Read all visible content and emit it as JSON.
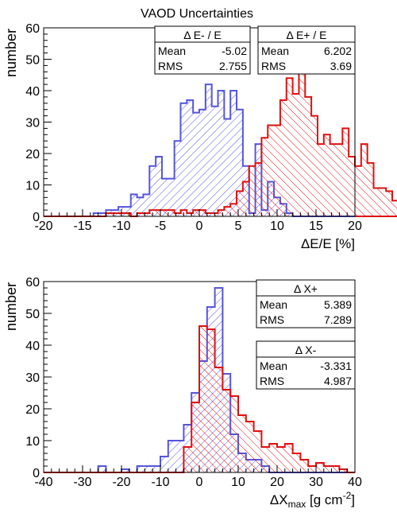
{
  "chart_data": [
    {
      "type": "histogram",
      "title": "VAOD Uncertainties",
      "xlabel_prefix": "ΔE/E [%]",
      "ylabel": "number",
      "xlim": [
        -20,
        20
      ],
      "ylim": [
        0,
        60
      ],
      "xticks": [
        "-20",
        "-15",
        "-10",
        "-5",
        "0",
        "5",
        "10",
        "15",
        "20"
      ],
      "yticks": [
        "0",
        "10",
        "20",
        "30",
        "40",
        "50",
        "60"
      ],
      "bin_width": 0.8,
      "series": [
        {
          "name": "Δ E- / E",
          "color": "#5555dd",
          "hatch": "backslash",
          "x_start": -14.4,
          "values": [
            0,
            1,
            1,
            2,
            2,
            3,
            3,
            7,
            6,
            7,
            16,
            19,
            12,
            12,
            24,
            36,
            37,
            33,
            34,
            42,
            35,
            40,
            31,
            40,
            34,
            16,
            1,
            23,
            2,
            11,
            6,
            4,
            1,
            0
          ]
        },
        {
          "name": "Δ E+ / E",
          "color": "#e01010",
          "hatch": "slash",
          "x_start": -12.0,
          "values": [
            1,
            1,
            1,
            1,
            0,
            1,
            1,
            2,
            2,
            2,
            2,
            1,
            2,
            1,
            2,
            2,
            1,
            1,
            2,
            3,
            4,
            8,
            11,
            16,
            17,
            25,
            29,
            29,
            37,
            44,
            39,
            48,
            38,
            32,
            23,
            26,
            23,
            23,
            28,
            19,
            16,
            23,
            17,
            9,
            9,
            8,
            5,
            5,
            6,
            3,
            4,
            4,
            5,
            2,
            1,
            1,
            1,
            0
          ]
        }
      ],
      "stats_boxes": [
        {
          "title": "Δ E- / E",
          "mean_label": "Mean",
          "mean": "-5.02",
          "rms_label": "RMS",
          "rms": "2.755"
        },
        {
          "title": "Δ E+ / E",
          "mean_label": "Mean",
          "mean": "6.202",
          "rms_label": "RMS",
          "rms": "3.69"
        }
      ]
    },
    {
      "type": "histogram",
      "title": "",
      "xlabel": "ΔX",
      "xlabel_sub": "max",
      "xlabel_unit": " [g cm",
      "xlabel_sup": "-2",
      "xlabel_end": "]",
      "ylabel": "number",
      "xlim": [
        -40,
        40
      ],
      "ylim": [
        0,
        60
      ],
      "xticks": [
        "-40",
        "-30",
        "-20",
        "-10",
        "0",
        "10",
        "20",
        "30",
        "40"
      ],
      "yticks": [
        "0",
        "10",
        "20",
        "30",
        "40",
        "50",
        "60"
      ],
      "bin_width": 2,
      "series": [
        {
          "name": "Δ X-",
          "color": "#5555dd",
          "hatch": "backslash",
          "x_start": -26,
          "values": [
            2,
            0,
            0,
            1,
            0,
            2,
            2,
            2,
            5,
            10,
            10,
            15,
            25,
            35,
            52,
            58,
            31,
            12,
            6,
            4,
            4,
            2,
            0
          ]
        },
        {
          "name": "Δ X+",
          "color": "#e01010",
          "hatch": "slash",
          "x_start": -4,
          "values": [
            8,
            22,
            46,
            45,
            33,
            26,
            24,
            18,
            16,
            13,
            8,
            9,
            8,
            9,
            6,
            4,
            2,
            3,
            2,
            2,
            1,
            0
          ]
        }
      ],
      "stats_boxes": [
        {
          "title": "Δ X+",
          "mean_label": "Mean",
          "mean": "5.389",
          "rms_label": "RMS",
          "rms": "7.289"
        },
        {
          "title": "Δ X-",
          "mean_label": "Mean",
          "mean": "-3.331",
          "rms_label": "RMS",
          "rms": "4.987"
        }
      ]
    }
  ]
}
